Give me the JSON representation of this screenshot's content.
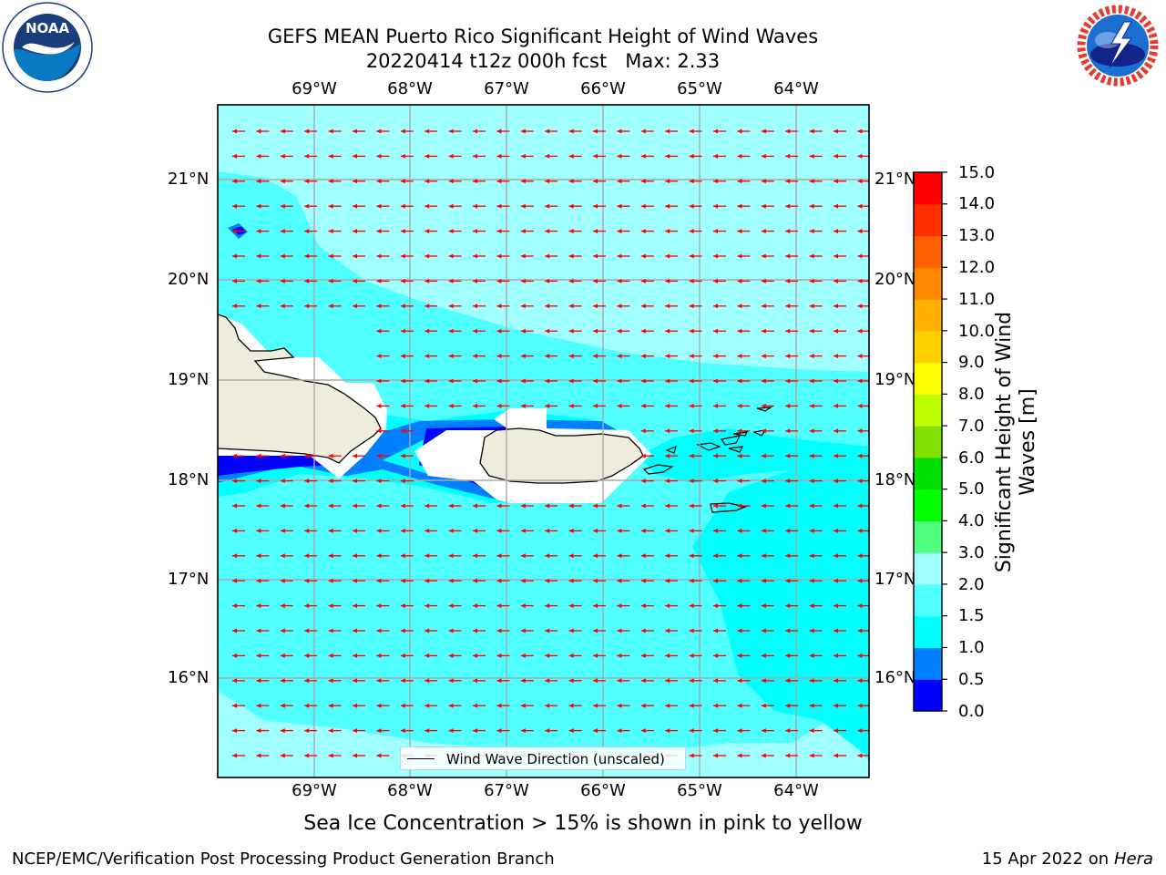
{
  "title": {
    "line1": "GEFS MEAN Puerto Rico Significant Height of Wind Waves",
    "line2": "20220414 t12z 000h fcst   Max: 2.33"
  },
  "logos": {
    "left": {
      "name": "NOAA",
      "ring_text": "NATIONAL OCEANIC AND ATMOSPHERIC ADMINISTRATION · U.S. DEPARTMENT OF COMMERCE"
    },
    "right": {
      "name": "NATIONAL WEATHER SERVICE"
    }
  },
  "map": {
    "lon_labels": [
      "69°W",
      "68°W",
      "67°W",
      "66°W",
      "65°W",
      "64°W"
    ],
    "lat_labels": [
      "21°N",
      "20°N",
      "19°N",
      "18°N",
      "17°N",
      "16°N"
    ],
    "lon_range": [
      -70.0,
      -63.25
    ],
    "lat_range": [
      15.0,
      21.75
    ],
    "grid": true,
    "vector_color": "#ff0000",
    "vector_direction": "westward",
    "legend_label": "Wind Wave Direction (unscaled)",
    "land_color": "#eeecdc",
    "land": [
      "Hispaniola",
      "Puerto Rico",
      "Virgin Islands",
      "St. Croix"
    ]
  },
  "colorbar": {
    "label": "Significant Height of Wind Waves [m]",
    "ticks": [
      "15.0",
      "14.0",
      "13.0",
      "12.0",
      "11.0",
      "10.0",
      "9.0",
      "8.0",
      "7.0",
      "6.0",
      "5.0",
      "4.0",
      "3.0",
      "2.0",
      "1.5",
      "1.0",
      "0.5",
      "0.0"
    ],
    "colors": [
      "#0000ff",
      "#0080ff",
      "#00ffff",
      "#50ffff",
      "#a0ffff",
      "#50ff80",
      "#00ff00",
      "#00e000",
      "#80e000",
      "#c0ff00",
      "#ffff00",
      "#ffd000",
      "#ffb000",
      "#ff8800",
      "#ff6000",
      "#ff3000",
      "#ff0000"
    ]
  },
  "subtitle": "Sea Ice Concentration > 15% is shown in pink to yellow",
  "footer": {
    "left": "NCEP/EMC/Verification Post Processing Product Generation Branch",
    "right_prefix": "15 Apr 2022 on ",
    "right_host": "Hera"
  }
}
